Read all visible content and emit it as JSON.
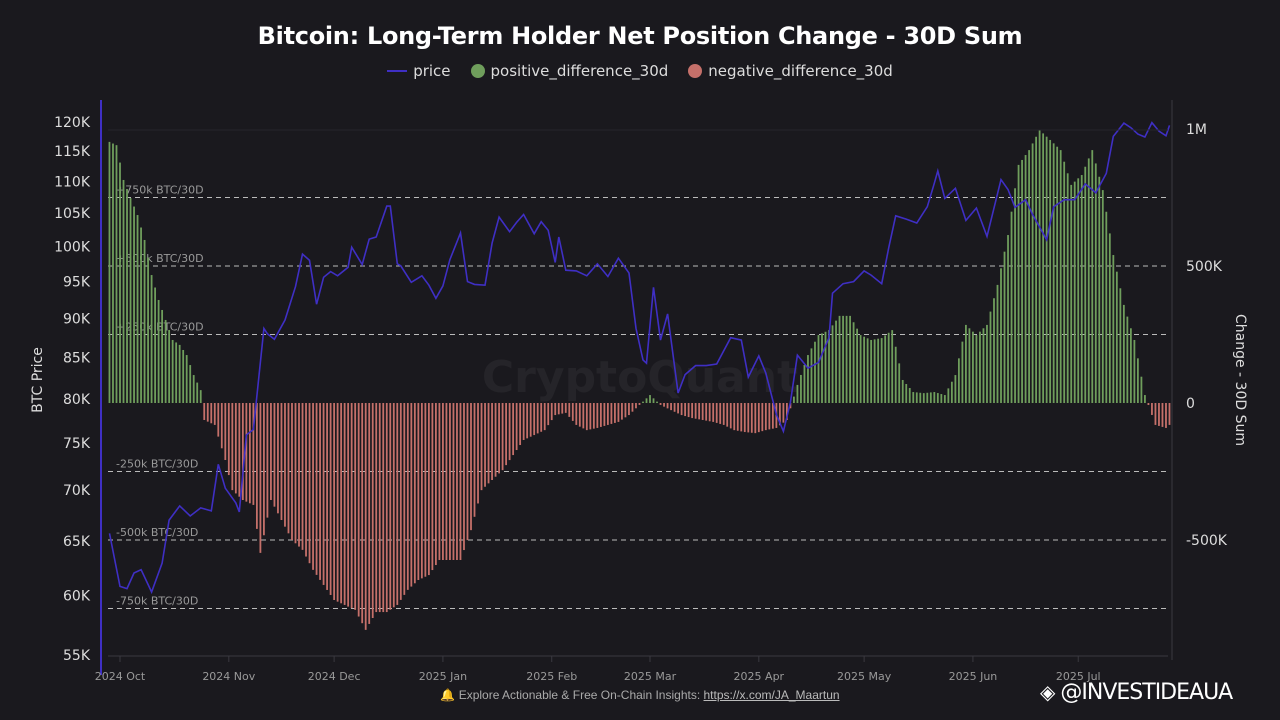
{
  "chart_data": {
    "type": "bar+line",
    "title": "Bitcoin: Long-Term Holder Net Position Change - 30D Sum",
    "legend": {
      "placement": "top-center",
      "entries": [
        "price",
        "positive_difference_30d",
        "negative_difference_30d"
      ]
    },
    "colors": {
      "price": "#3f2fc4",
      "positive": "#6f9e5c",
      "negative": "#c5706a",
      "background": "#1a191e"
    },
    "y_left": {
      "label": "BTC Price",
      "scale": "log",
      "range": [
        55000,
        122000
      ],
      "ticks": [
        "55K",
        "60K",
        "65K",
        "70K",
        "75K",
        "80K",
        "85K",
        "90K",
        "95K",
        "100K",
        "105K",
        "110K",
        "115K",
        "120K"
      ]
    },
    "y_right": {
      "label": "Change - 30D Sum",
      "scale": "linear",
      "range": [
        -850000,
        1000000
      ],
      "ticks": [
        "-500K",
        "0",
        "500K",
        "1M"
      ]
    },
    "x_ticks": [
      "2024 Oct",
      "2024 Nov",
      "2024 Dec",
      "2025 Jan",
      "2025 Feb",
      "2025 Mar",
      "2025 Apr",
      "2025 May",
      "2025 Jun",
      "2025 Jul"
    ],
    "grid": false,
    "reference_lines": [
      {
        "value": 750000,
        "label": "+750k BTC/30D"
      },
      {
        "value": 500000,
        "label": "+500k BTC/30D"
      },
      {
        "value": 250000,
        "label": "+250k BTC/30D"
      },
      {
        "value": -250000,
        "label": "-250k BTC/30D"
      },
      {
        "value": -500000,
        "label": "-500k BTC/30D"
      },
      {
        "value": -750000,
        "label": "-750k BTC/30D"
      }
    ],
    "price": [
      [
        "2024-09-28",
        65.7
      ],
      [
        "2024-10-01",
        60.8
      ],
      [
        "2024-10-03",
        60.6
      ],
      [
        "2024-10-05",
        62.0
      ],
      [
        "2024-10-07",
        62.3
      ],
      [
        "2024-10-10",
        60.3
      ],
      [
        "2024-10-13",
        62.9
      ],
      [
        "2024-10-15",
        67.0
      ],
      [
        "2024-10-18",
        68.4
      ],
      [
        "2024-10-21",
        67.4
      ],
      [
        "2024-10-24",
        68.2
      ],
      [
        "2024-10-27",
        67.9
      ],
      [
        "2024-10-29",
        72.7
      ],
      [
        "2024-10-31",
        70.2
      ],
      [
        "2024-11-03",
        68.7
      ],
      [
        "2024-11-04",
        67.8
      ],
      [
        "2024-11-06",
        75.9
      ],
      [
        "2024-11-08",
        76.5
      ],
      [
        "2024-11-11",
        88.7
      ],
      [
        "2024-11-12",
        88.0
      ],
      [
        "2024-11-14",
        87.3
      ],
      [
        "2024-11-17",
        89.8
      ],
      [
        "2024-11-20",
        94.3
      ],
      [
        "2024-11-22",
        98.9
      ],
      [
        "2024-11-24",
        98.0
      ],
      [
        "2024-11-26",
        91.9
      ],
      [
        "2024-11-28",
        95.6
      ],
      [
        "2024-11-30",
        96.4
      ],
      [
        "2024-12-02",
        95.8
      ],
      [
        "2024-12-05",
        97.0
      ],
      [
        "2024-12-06",
        99.9
      ],
      [
        "2024-12-09",
        97.4
      ],
      [
        "2024-12-11",
        101.1
      ],
      [
        "2024-12-13",
        101.4
      ],
      [
        "2024-12-16",
        106.1
      ],
      [
        "2024-12-17",
        106.1
      ],
      [
        "2024-12-19",
        97.5
      ],
      [
        "2024-12-20",
        97.2
      ],
      [
        "2024-12-23",
        94.9
      ],
      [
        "2024-12-26",
        95.8
      ],
      [
        "2024-12-28",
        94.5
      ],
      [
        "2024-12-30",
        92.7
      ],
      [
        "2025-01-01",
        94.4
      ],
      [
        "2025-01-03",
        98.1
      ],
      [
        "2025-01-06",
        102.0
      ],
      [
        "2025-01-08",
        95.0
      ],
      [
        "2025-01-10",
        94.6
      ],
      [
        "2025-01-13",
        94.5
      ],
      [
        "2025-01-15",
        100.5
      ],
      [
        "2025-01-17",
        104.4
      ],
      [
        "2025-01-20",
        102.2
      ],
      [
        "2025-01-22",
        103.6
      ],
      [
        "2025-01-24",
        104.8
      ],
      [
        "2025-01-27",
        101.9
      ],
      [
        "2025-01-29",
        103.7
      ],
      [
        "2025-01-31",
        102.4
      ],
      [
        "2025-02-02",
        97.7
      ],
      [
        "2025-02-03",
        101.4
      ],
      [
        "2025-02-05",
        96.6
      ],
      [
        "2025-02-08",
        96.5
      ],
      [
        "2025-02-11",
        95.8
      ],
      [
        "2025-02-14",
        97.5
      ],
      [
        "2025-02-17",
        95.7
      ],
      [
        "2025-02-20",
        98.3
      ],
      [
        "2025-02-23",
        96.2
      ],
      [
        "2025-02-25",
        88.7
      ],
      [
        "2025-02-27",
        84.7
      ],
      [
        "2025-02-28",
        84.3
      ],
      [
        "2025-03-02",
        94.2
      ],
      [
        "2025-03-04",
        87.2
      ],
      [
        "2025-03-06",
        90.6
      ],
      [
        "2025-03-09",
        80.7
      ],
      [
        "2025-03-11",
        82.9
      ],
      [
        "2025-03-14",
        84.0
      ],
      [
        "2025-03-17",
        84.0
      ],
      [
        "2025-03-20",
        84.2
      ],
      [
        "2025-03-24",
        87.5
      ],
      [
        "2025-03-27",
        87.2
      ],
      [
        "2025-03-29",
        82.6
      ],
      [
        "2025-04-01",
        85.2
      ],
      [
        "2025-04-03",
        83.1
      ],
      [
        "2025-04-06",
        78.2
      ],
      [
        "2025-04-08",
        76.3
      ],
      [
        "2025-04-10",
        79.6
      ],
      [
        "2025-04-12",
        85.3
      ],
      [
        "2025-04-15",
        83.7
      ],
      [
        "2025-04-18",
        84.4
      ],
      [
        "2025-04-21",
        87.5
      ],
      [
        "2025-04-22",
        93.4
      ],
      [
        "2025-04-25",
        94.7
      ],
      [
        "2025-04-28",
        95.0
      ],
      [
        "2025-05-01",
        96.5
      ],
      [
        "2025-05-03",
        95.9
      ],
      [
        "2025-05-06",
        94.7
      ],
      [
        "2025-05-08",
        99.8
      ],
      [
        "2025-05-10",
        104.6
      ],
      [
        "2025-05-13",
        104.1
      ],
      [
        "2025-05-16",
        103.5
      ],
      [
        "2025-05-19",
        106.0
      ],
      [
        "2025-05-21",
        109.7
      ],
      [
        "2025-05-22",
        111.7
      ],
      [
        "2025-05-24",
        107.3
      ],
      [
        "2025-05-27",
        108.9
      ],
      [
        "2025-05-30",
        103.9
      ],
      [
        "2025-06-02",
        105.8
      ],
      [
        "2025-06-05",
        101.5
      ],
      [
        "2025-06-09",
        110.3
      ],
      [
        "2025-06-11",
        108.7
      ],
      [
        "2025-06-13",
        105.9
      ],
      [
        "2025-06-16",
        107.1
      ],
      [
        "2025-06-18",
        104.8
      ],
      [
        "2025-06-22",
        101.0
      ],
      [
        "2025-06-24",
        106.0
      ],
      [
        "2025-06-27",
        107.1
      ],
      [
        "2025-06-30",
        107.1
      ],
      [
        "2025-07-03",
        109.6
      ],
      [
        "2025-07-06",
        108.2
      ],
      [
        "2025-07-09",
        111.3
      ],
      [
        "2025-07-11",
        117.5
      ],
      [
        "2025-07-14",
        119.8
      ],
      [
        "2025-07-16",
        119.0
      ],
      [
        "2025-07-18",
        117.9
      ],
      [
        "2025-07-20",
        117.4
      ],
      [
        "2025-07-22",
        119.9
      ],
      [
        "2025-07-24",
        118.4
      ],
      [
        "2025-07-26",
        117.6
      ],
      [
        "2025-07-27",
        119.4
      ]
    ],
    "price_unit": "K USD",
    "net_position_change_30d": [
      [
        "2024-09-28",
        953
      ],
      [
        "2024-09-30",
        941
      ],
      [
        "2024-10-02",
        814
      ],
      [
        "2024-10-04",
        748
      ],
      [
        "2024-10-06",
        686
      ],
      [
        "2024-10-08",
        595
      ],
      [
        "2024-10-10",
        467
      ],
      [
        "2024-10-12",
        376
      ],
      [
        "2024-10-14",
        303
      ],
      [
        "2024-10-16",
        230
      ],
      [
        "2024-10-18",
        212
      ],
      [
        "2024-10-20",
        175
      ],
      [
        "2024-10-22",
        102
      ],
      [
        "2024-10-24",
        47
      ],
      [
        "2024-10-25",
        -62
      ],
      [
        "2024-10-28",
        -80
      ],
      [
        "2024-10-31",
        -208
      ],
      [
        "2024-11-02",
        -318
      ],
      [
        "2024-11-05",
        -354
      ],
      [
        "2024-11-08",
        -372
      ],
      [
        "2024-11-10",
        -547
      ],
      [
        "2024-11-13",
        -354
      ],
      [
        "2024-11-16",
        -427
      ],
      [
        "2024-11-19",
        -500
      ],
      [
        "2024-11-22",
        -536
      ],
      [
        "2024-11-25",
        -609
      ],
      [
        "2024-11-28",
        -664
      ],
      [
        "2024-12-01",
        -719
      ],
      [
        "2024-12-04",
        -737
      ],
      [
        "2024-12-07",
        -755
      ],
      [
        "2024-12-10",
        -828
      ],
      [
        "2024-12-13",
        -763
      ],
      [
        "2024-12-16",
        -763
      ],
      [
        "2024-12-19",
        -737
      ],
      [
        "2024-12-22",
        -682
      ],
      [
        "2024-12-25",
        -646
      ],
      [
        "2024-12-28",
        -628
      ],
      [
        "2024-12-31",
        -573
      ],
      [
        "2025-01-03",
        -573
      ],
      [
        "2025-01-06",
        -573
      ],
      [
        "2025-01-09",
        -464
      ],
      [
        "2025-01-12",
        -318
      ],
      [
        "2025-01-15",
        -281
      ],
      [
        "2025-01-18",
        -245
      ],
      [
        "2025-01-21",
        -190
      ],
      [
        "2025-01-24",
        -135
      ],
      [
        "2025-01-27",
        -117
      ],
      [
        "2025-01-30",
        -99
      ],
      [
        "2025-02-02",
        -44
      ],
      [
        "2025-02-05",
        -36
      ],
      [
        "2025-02-08",
        -80
      ],
      [
        "2025-02-11",
        -99
      ],
      [
        "2025-02-14",
        -91
      ],
      [
        "2025-02-17",
        -80
      ],
      [
        "2025-02-20",
        -69
      ],
      [
        "2025-02-23",
        -44
      ],
      [
        "2025-02-26",
        -7
      ],
      [
        "2025-03-01",
        29
      ],
      [
        "2025-03-04",
        -7
      ],
      [
        "2025-03-07",
        -26
      ],
      [
        "2025-03-10",
        -44
      ],
      [
        "2025-03-13",
        -55
      ],
      [
        "2025-03-16",
        -62
      ],
      [
        "2025-03-19",
        -69
      ],
      [
        "2025-03-22",
        -80
      ],
      [
        "2025-03-25",
        -99
      ],
      [
        "2025-03-28",
        -106
      ],
      [
        "2025-03-31",
        -110
      ],
      [
        "2025-04-03",
        -99
      ],
      [
        "2025-04-06",
        -91
      ],
      [
        "2025-04-09",
        -62
      ],
      [
        "2025-04-12",
        66
      ],
      [
        "2025-04-15",
        175
      ],
      [
        "2025-04-18",
        248
      ],
      [
        "2025-04-21",
        266
      ],
      [
        "2025-04-24",
        318
      ],
      [
        "2025-04-27",
        318
      ],
      [
        "2025-04-30",
        248
      ],
      [
        "2025-05-03",
        230
      ],
      [
        "2025-05-06",
        237
      ],
      [
        "2025-05-09",
        266
      ],
      [
        "2025-05-12",
        84
      ],
      [
        "2025-05-15",
        40
      ],
      [
        "2025-05-18",
        36
      ],
      [
        "2025-05-21",
        40
      ],
      [
        "2025-05-24",
        29
      ],
      [
        "2025-05-27",
        102
      ],
      [
        "2025-05-30",
        285
      ],
      [
        "2025-06-02",
        248
      ],
      [
        "2025-06-05",
        285
      ],
      [
        "2025-06-08",
        431
      ],
      [
        "2025-06-11",
        613
      ],
      [
        "2025-06-14",
        869
      ],
      [
        "2025-06-17",
        923
      ],
      [
        "2025-06-20",
        996
      ],
      [
        "2025-06-23",
        960
      ],
      [
        "2025-06-26",
        923
      ],
      [
        "2025-06-29",
        796
      ],
      [
        "2025-07-02",
        832
      ],
      [
        "2025-07-05",
        923
      ],
      [
        "2025-07-08",
        777
      ],
      [
        "2025-07-11",
        540
      ],
      [
        "2025-07-14",
        358
      ],
      [
        "2025-07-17",
        230
      ],
      [
        "2025-07-20",
        29
      ],
      [
        "2025-07-23",
        -80
      ],
      [
        "2025-07-26",
        -91
      ],
      [
        "2025-07-27",
        -80
      ]
    ],
    "net_position_unit": "K BTC"
  },
  "watermark": "CryptoQuant",
  "footer": {
    "text": "🔔 Explore Actionable & Free On-Chain Insights: ",
    "link": "https://x.com/JA_Maartun"
  },
  "brand": "@INVESTIDEAUA"
}
